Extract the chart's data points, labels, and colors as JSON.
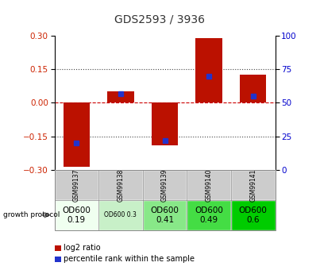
{
  "title": "GDS2593 / 3936",
  "samples": [
    "GSM99137",
    "GSM99138",
    "GSM99139",
    "GSM99140",
    "GSM99141"
  ],
  "log2_ratio": [
    -0.285,
    0.05,
    -0.19,
    0.29,
    0.125
  ],
  "percentile_rank": [
    20,
    57,
    22,
    70,
    55
  ],
  "ylim_left": [
    -0.3,
    0.3
  ],
  "ylim_right": [
    0,
    100
  ],
  "yticks_left": [
    -0.3,
    -0.15,
    0,
    0.15,
    0.3
  ],
  "yticks_right": [
    0,
    25,
    50,
    75,
    100
  ],
  "bar_color": "#bb1100",
  "dot_color": "#2233cc",
  "protocol_labels": [
    "OD600\n0.19",
    "OD600 0.3",
    "OD600\n0.41",
    "OD600\n0.49",
    "OD600\n0.6"
  ],
  "protocol_colors": [
    "#f0fff0",
    "#c8f0c8",
    "#88e888",
    "#44dd44",
    "#00cc00"
  ],
  "sample_cell_color": "#cccccc",
  "protocol_row_label": "growth protocol",
  "legend_red": "log2 ratio",
  "legend_blue": "percentile rank within the sample",
  "title_color": "#333333",
  "left_axis_color": "#cc2200",
  "right_axis_color": "#0000cc",
  "hline_color": "#cc0000",
  "dotted_color": "#444444",
  "bg_color": "#ffffff"
}
